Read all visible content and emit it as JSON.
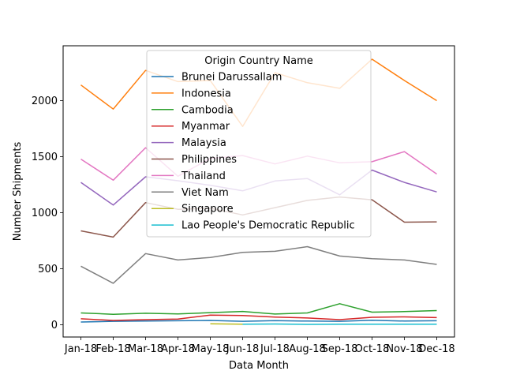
{
  "chart_data": {
    "type": "line",
    "title": "",
    "xlabel": "Data Month",
    "ylabel": "Number Shipments",
    "categories": [
      "Jan-18",
      "Feb-18",
      "Mar-18",
      "Apr-18",
      "May-18",
      "Jun-18",
      "Jul-18",
      "Aug-18",
      "Sep-18",
      "Oct-18",
      "Nov-18",
      "Dec-18"
    ],
    "ylim": [
      -110,
      2490
    ],
    "yticks": [
      0,
      500,
      1000,
      1500,
      2000
    ],
    "grid": false,
    "legend": {
      "title": "Origin Country Name",
      "placement": "upper-center"
    },
    "series": [
      {
        "name": "Brunei Darussallam",
        "color": "#1f77b4",
        "values": [
          24,
          30,
          33,
          35,
          38,
          30,
          36,
          32,
          30,
          40,
          32,
          35
        ]
      },
      {
        "name": "Indonesia",
        "color": "#ff7f0e",
        "values": [
          2140,
          1925,
          2270,
          2170,
          2180,
          1770,
          2250,
          2160,
          2110,
          2370,
          2180,
          2000
        ]
      },
      {
        "name": "Cambodia",
        "color": "#2ca02c",
        "values": [
          105,
          93,
          102,
          96,
          108,
          118,
          95,
          105,
          187,
          112,
          117,
          126
        ]
      },
      {
        "name": "Myanmar",
        "color": "#d62728",
        "values": [
          53,
          38,
          45,
          50,
          86,
          82,
          68,
          60,
          45,
          66,
          70,
          63
        ]
      },
      {
        "name": "Malaysia",
        "color": "#9467bd",
        "values": [
          1270,
          1068,
          1320,
          1285,
          1245,
          1195,
          1283,
          1305,
          1160,
          1380,
          1270,
          1185
        ]
      },
      {
        "name": "Philippines",
        "color": "#8c564b",
        "values": [
          838,
          782,
          1090,
          1030,
          1040,
          980,
          1045,
          1110,
          1140,
          1115,
          915,
          918
        ]
      },
      {
        "name": "Thailand",
        "color": "#e377c2",
        "values": [
          1478,
          1290,
          1580,
          1325,
          1485,
          1510,
          1435,
          1505,
          1445,
          1455,
          1545,
          1345
        ]
      },
      {
        "name": "Viet Nam",
        "color": "#7f7f7f",
        "values": [
          522,
          370,
          635,
          578,
          600,
          645,
          655,
          697,
          613,
          590,
          578,
          538
        ]
      },
      {
        "name": "Singapore",
        "color": "#bcbd22",
        "values": [
          null,
          null,
          null,
          null,
          8,
          5,
          null,
          null,
          null,
          null,
          null,
          null
        ]
      },
      {
        "name": "Lao People's Democratic Republic",
        "color": "#17becf",
        "values": [
          null,
          null,
          null,
          null,
          null,
          4,
          6,
          3,
          4,
          5,
          4,
          4
        ]
      }
    ]
  }
}
